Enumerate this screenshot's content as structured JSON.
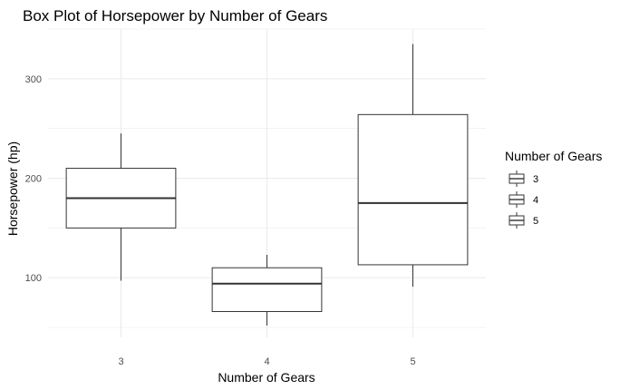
{
  "chart_data": {
    "type": "boxplot",
    "title": "Box Plot of Horsepower by Number of Gears",
    "xlabel": "Number of Gears",
    "ylabel": "Horsepower (hp)",
    "categories": [
      "3",
      "4",
      "5"
    ],
    "ylim": [
      40,
      350
    ],
    "y_ticks": [
      100,
      200,
      300
    ],
    "grid": true,
    "boxes": [
      {
        "category": "3",
        "whisker_low": 97,
        "q1": 150,
        "median": 180,
        "q3": 210,
        "whisker_high": 245
      },
      {
        "category": "4",
        "whisker_low": 52,
        "q1": 66,
        "median": 94,
        "q3": 110,
        "whisker_high": 123
      },
      {
        "category": "5",
        "whisker_low": 91,
        "q1": 113,
        "median": 175,
        "q3": 264,
        "whisker_high": 335
      }
    ],
    "legend": {
      "title": "Number of Gears",
      "entries": [
        "3",
        "4",
        "5"
      ],
      "placement": "right"
    },
    "colors": {
      "box_stroke": "#333333",
      "grid": "#ebebeb",
      "text": "#4d4d4d",
      "title": "#000000"
    }
  }
}
